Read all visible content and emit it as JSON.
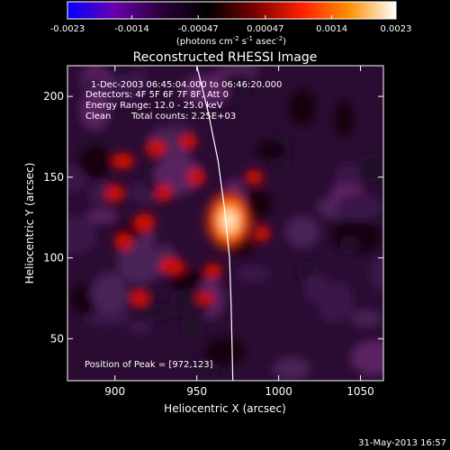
{
  "colorbar": {
    "tick_labels": [
      "-0.0023",
      "-0.0014",
      "-0.00047",
      "0.00047",
      "0.0014",
      "0.0023"
    ],
    "ticks": [
      -0.0023,
      -0.0014,
      -0.00047,
      0.00047,
      0.0014,
      0.0023
    ],
    "range": [
      -0.0023,
      0.0023
    ],
    "units_prefix": "(photons cm",
    "units_exp1": "-2",
    "units_mid": " s",
    "units_exp2": "-1",
    "units_mid2": " asec",
    "units_exp3": "-2",
    "units_suffix": ")",
    "stops": [
      "#0000ff",
      "#6a00b0",
      "#2a0038",
      "#000000",
      "#7a0000",
      "#ff2000",
      "#ff9000",
      "#ffffff"
    ]
  },
  "title": "Reconstructed RHESSI Image",
  "info": {
    "line1": "1-Dec-2003 06:45:04.000 to 06:46:20.000",
    "line2": "Detectors: 4F 5F 6F 7F 8F, Att 0",
    "line3": "Energy Range: 12.0 - 25.0 keV",
    "line4a": "Clean",
    "line4b": "Total counts: 2.25E+03"
  },
  "peak_label": "Position of Peak = [972,123]",
  "footer_timestamp": "31-May-2013 16:57",
  "chart_data": {
    "type": "heatmap",
    "title": "Reconstructed RHESSI Image",
    "xlabel": "Heliocentric X (arcsec)",
    "ylabel": "Heliocentric Y (arcsec)",
    "xlim": [
      871,
      1064
    ],
    "ylim": [
      24,
      219
    ],
    "x_ticks": [
      900,
      950,
      1000,
      1050
    ],
    "y_ticks": [
      50,
      100,
      150,
      200
    ],
    "colorbar_range": [
      -0.0023,
      0.0023
    ],
    "peak": {
      "x": 972,
      "y": 123
    },
    "limb_curve": [
      [
        950,
        219
      ],
      [
        957,
        190
      ],
      [
        963,
        160
      ],
      [
        967,
        130
      ],
      [
        970,
        100
      ],
      [
        971,
        70
      ],
      [
        972,
        24
      ]
    ],
    "colors": {
      "background": "#000000",
      "frame": "#ffffff",
      "negative_field": "#4a2456",
      "positive": "#d01000",
      "peak": "#ffffff"
    }
  }
}
